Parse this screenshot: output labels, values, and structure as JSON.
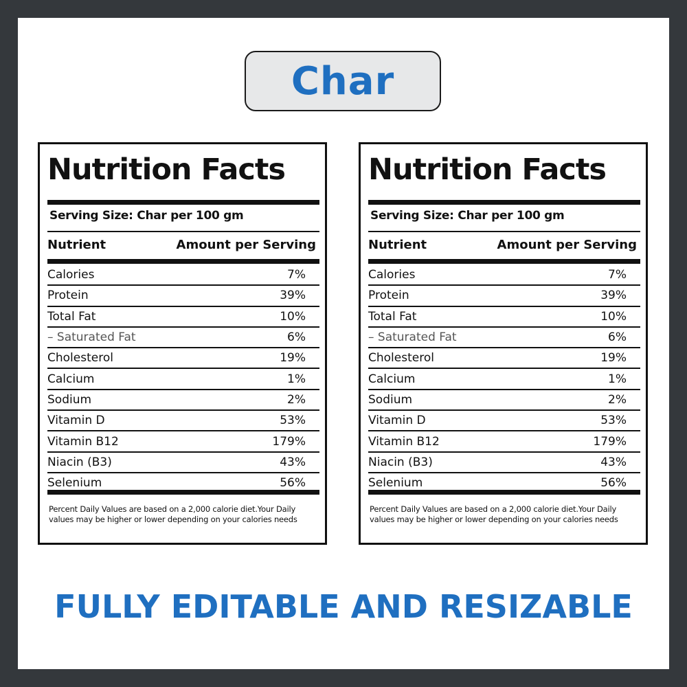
{
  "title": "Char",
  "tagline": "FULLY EDITABLE AND RESIZABLE",
  "colors": {
    "accent": "#1f6fc0",
    "border": "#34383c",
    "pill_bg": "#e7e8e9"
  },
  "label": {
    "heading": "Nutrition Facts",
    "serving_size": "Serving Size: Char per 100 gm",
    "col_nutrient": "Nutrient",
    "col_amount": "Amount per Serving",
    "rows": [
      {
        "name": "Calories",
        "value": "7%"
      },
      {
        "name": "Protein",
        "value": "39%"
      },
      {
        "name": "Total Fat",
        "value": "10%"
      },
      {
        "name": "– Saturated Fat",
        "value": "6%"
      },
      {
        "name": "Cholesterol",
        "value": "19%"
      },
      {
        "name": "Calcium",
        "value": "1%"
      },
      {
        "name": "Sodium",
        "value": "2%"
      },
      {
        "name": "Vitamin D",
        "value": "53%"
      },
      {
        "name": "Vitamin B12",
        "value": "179%"
      },
      {
        "name": "Niacin (B3)",
        "value": "43%"
      },
      {
        "name": "Selenium",
        "value": "56%"
      }
    ],
    "footnote": "Percent Daily Values are based on a 2,000 calorie diet.Your Daily values may be higher or lower depending on your calories needs"
  }
}
